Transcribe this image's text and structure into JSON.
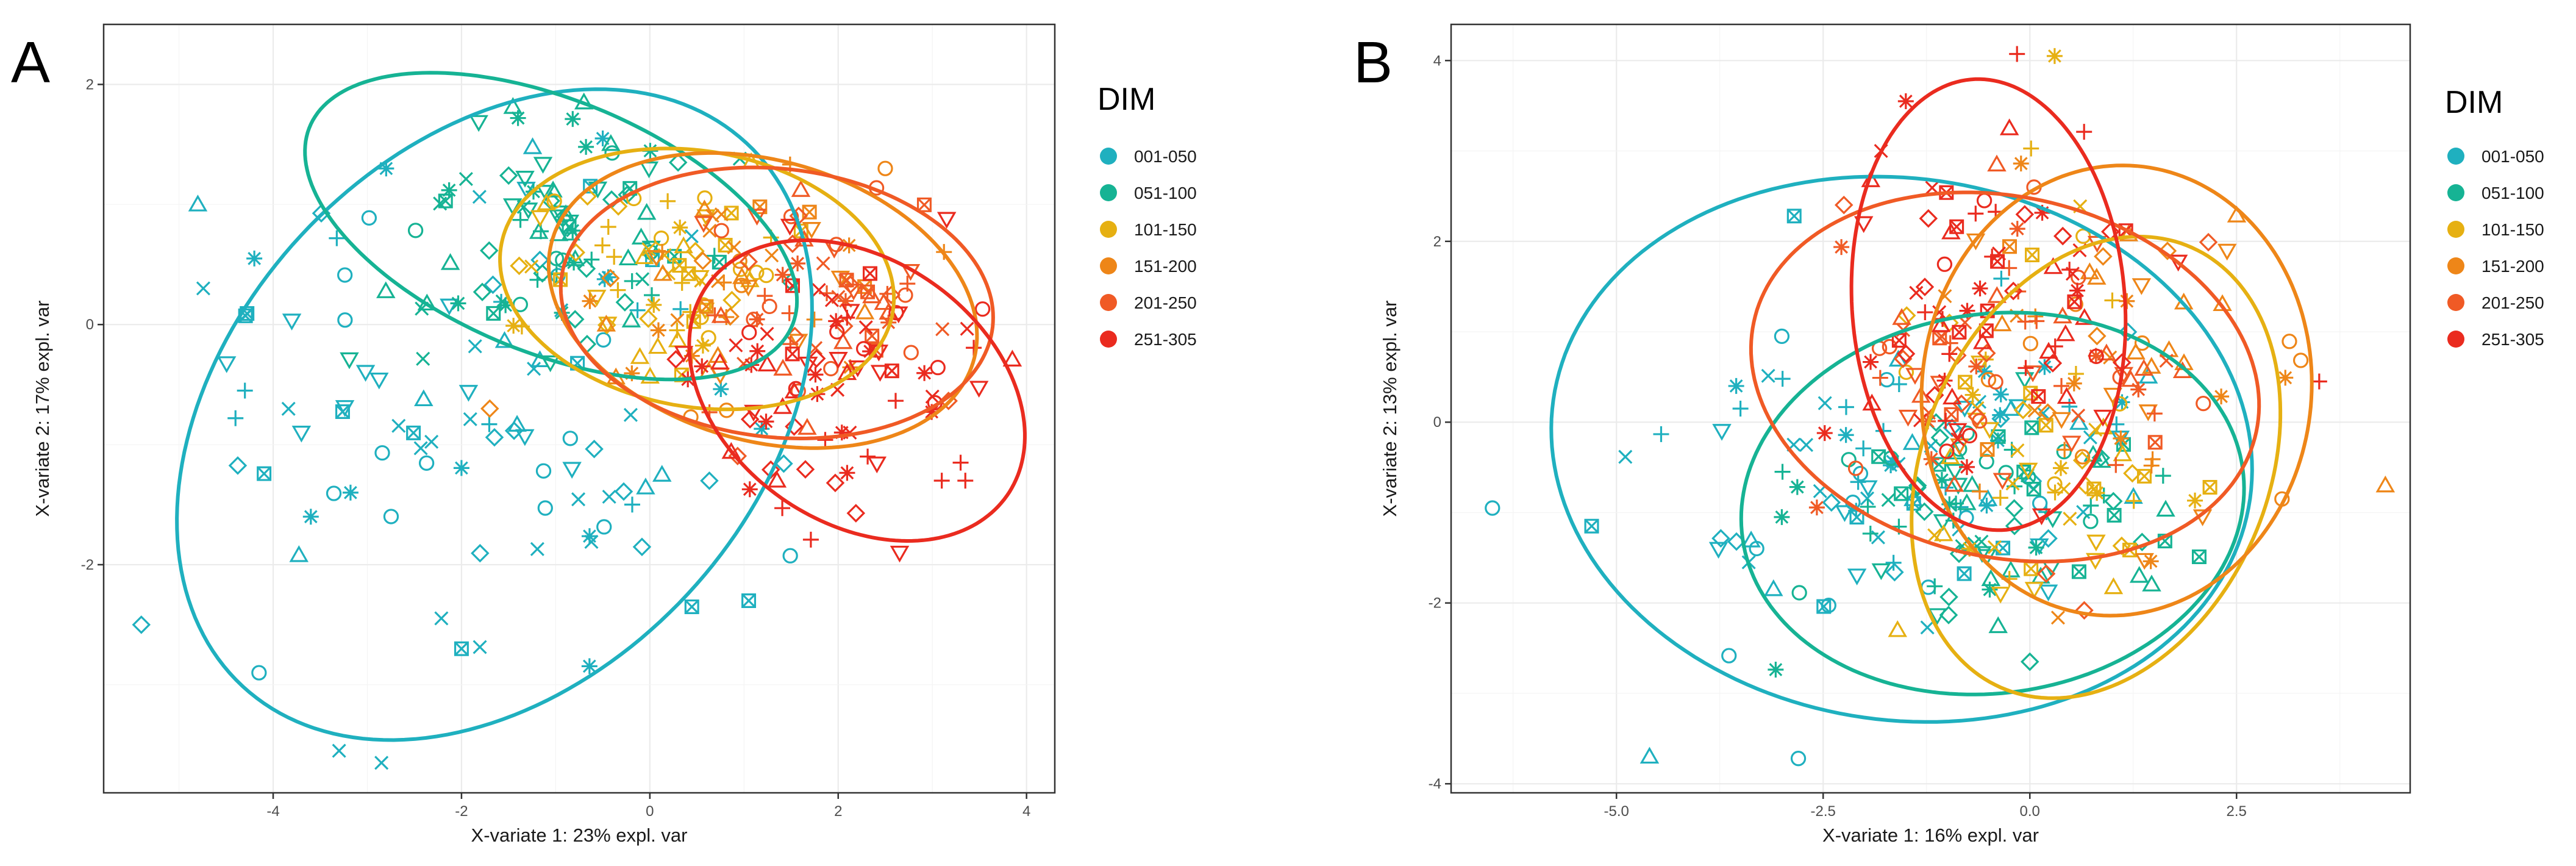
{
  "colors": {
    "001-050": "#1fb0bf",
    "051-100": "#16b394",
    "101-150": "#e6b012",
    "151-200": "#ee8618",
    "201-250": "#f05a25",
    "251-305": "#ea2b1f"
  },
  "chart_data": [
    {
      "panel": "A",
      "type": "scatter",
      "title": "",
      "xlabel": "X-variate 1: 23% expl. var",
      "ylabel": "X-variate 2: 17% expl. var",
      "xlim": [
        -5.8,
        4.3
      ],
      "ylim": [
        -3.9,
        2.5
      ],
      "xticks": [
        -4,
        -2,
        0,
        2,
        4
      ],
      "yticks": [
        -2,
        0,
        2
      ],
      "xtick_labels": [
        "-4",
        "-2",
        "0",
        "2",
        "4"
      ],
      "ytick_labels": [
        "-2",
        "0",
        "2"
      ],
      "legend": {
        "title": "DIM",
        "placement": "right",
        "entries": [
          "001-050",
          "051-100",
          "101-150",
          "151-200",
          "201-250",
          "251-305"
        ]
      },
      "ellipses": [
        {
          "group": "001-050",
          "cx": -1.65,
          "cy": -0.75,
          "rx": 3.6,
          "ry": 2.4,
          "angle_deg": 28
        },
        {
          "group": "051-100",
          "cx": -1.05,
          "cy": 0.82,
          "rx": 2.7,
          "ry": 1.08,
          "angle_deg": -16
        },
        {
          "group": "101-150",
          "cx": 0.5,
          "cy": 0.38,
          "rx": 2.1,
          "ry": 1.07,
          "angle_deg": -6
        },
        {
          "group": "151-200",
          "cx": 1.2,
          "cy": 0.2,
          "rx": 2.3,
          "ry": 1.18,
          "angle_deg": -10
        },
        {
          "group": "201-250",
          "cx": 1.35,
          "cy": 0.18,
          "rx": 2.3,
          "ry": 1.12,
          "angle_deg": -4
        },
        {
          "group": "251-305",
          "cx": 2.2,
          "cy": -0.55,
          "rx": 1.85,
          "ry": 1.15,
          "angle_deg": -20
        }
      ],
      "groups": [
        {
          "name": "001-050",
          "center": [
            -1.7,
            -0.6
          ],
          "sd": [
            1.3,
            0.95
          ],
          "n": 85,
          "seed": 11,
          "extra": [
            [
              -5.4,
              -2.5,
              "diamond"
            ],
            [
              -4.8,
              1.0,
              "triangle"
            ],
            [
              -4.15,
              -2.9,
              "circle"
            ],
            [
              -2.85,
              -3.65,
              "x"
            ],
            [
              -3.3,
              -3.55,
              "x"
            ],
            [
              -2.0,
              -2.7,
              "boxx"
            ],
            [
              1.05,
              -2.3,
              "boxx"
            ],
            [
              -0.5,
              1.55,
              "asterisk"
            ],
            [
              -2.8,
              1.3,
              "asterisk"
            ],
            [
              -4.3,
              -0.55,
              "plus"
            ],
            [
              -4.4,
              -0.78,
              "plus"
            ],
            [
              -3.6,
              -1.6,
              "asterisk"
            ],
            [
              -3.7,
              -0.9,
              "triangle_down"
            ],
            [
              -4.2,
              0.55,
              "asterisk"
            ]
          ]
        },
        {
          "name": "051-100",
          "center": [
            -1.0,
            0.72
          ],
          "sd": [
            0.85,
            0.45
          ],
          "n": 80,
          "seed": 23,
          "extra": [
            [
              -1.4,
              1.72,
              "asterisk"
            ],
            [
              -0.7,
              1.85,
              "triangle"
            ],
            [
              0.3,
              1.35,
              "diamond"
            ]
          ]
        },
        {
          "name": "101-150",
          "center": [
            0.2,
            0.45
          ],
          "sd": [
            0.75,
            0.45
          ],
          "n": 60,
          "seed": 37,
          "extra": []
        },
        {
          "name": "151-200",
          "center": [
            0.9,
            0.2
          ],
          "sd": [
            0.8,
            0.5
          ],
          "n": 45,
          "seed": 41,
          "extra": [
            [
              2.5,
              1.3,
              "circle"
            ],
            [
              -1.7,
              -0.7,
              "diamond"
            ]
          ]
        },
        {
          "name": "201-250",
          "center": [
            1.7,
            0.1
          ],
          "sd": [
            0.7,
            0.45
          ],
          "n": 55,
          "seed": 53,
          "extra": [
            [
              1.5,
              0.9,
              "circle"
            ]
          ]
        },
        {
          "name": "251-305",
          "center": [
            2.0,
            -0.45
          ],
          "sd": [
            0.8,
            0.5
          ],
          "n": 70,
          "seed": 67,
          "extra": [
            [
              3.3,
              -1.15,
              "plus"
            ],
            [
              3.35,
              -1.3,
              "plus"
            ],
            [
              3.1,
              -1.3,
              "plus"
            ],
            [
              1.35,
              -1.3,
              "triangle"
            ],
            [
              3.0,
              -0.6,
              "x"
            ]
          ]
        }
      ]
    },
    {
      "panel": "B",
      "type": "scatter",
      "title": "",
      "xlabel": "X-variate 1: 16% expl. var",
      "ylabel": "X-variate 2: 13% expl. var",
      "xlim": [
        -7.0,
        4.6
      ],
      "ylim": [
        -4.1,
        4.4
      ],
      "xticks": [
        -5.0,
        -2.5,
        0.0,
        2.5
      ],
      "yticks": [
        -4,
        -2,
        0,
        2,
        4
      ],
      "xtick_labels": [
        "-5.0",
        "-2.5",
        "0.0",
        "2.5"
      ],
      "ytick_labels": [
        "-4",
        "-2",
        "0",
        "2",
        "4"
      ],
      "legend": {
        "title": "DIM",
        "placement": "right",
        "entries": [
          "001-050",
          "051-100",
          "101-150",
          "151-200",
          "201-250",
          "251-305"
        ]
      },
      "ellipses": [
        {
          "group": "001-050",
          "cx": -1.55,
          "cy": -0.3,
          "rx": 4.25,
          "ry": 3.0,
          "angle_deg": -6
        },
        {
          "group": "051-100",
          "cx": -0.45,
          "cy": -0.9,
          "rx": 3.05,
          "ry": 2.1,
          "angle_deg": 6
        },
        {
          "group": "101-150",
          "cx": 0.8,
          "cy": -0.5,
          "rx": 2.05,
          "ry": 2.7,
          "angle_deg": -30
        },
        {
          "group": "151-200",
          "cx": 1.05,
          "cy": 0.35,
          "rx": 2.35,
          "ry": 2.5,
          "angle_deg": -15
        },
        {
          "group": "201-250",
          "cx": -0.3,
          "cy": 0.5,
          "rx": 3.1,
          "ry": 2.0,
          "angle_deg": -10
        },
        {
          "group": "251-305",
          "cx": -0.5,
          "cy": 1.3,
          "rx": 1.65,
          "ry": 2.5,
          "angle_deg": 5
        }
      ],
      "groups": [
        {
          "name": "001-050",
          "center": [
            -1.1,
            -0.6
          ],
          "sd": [
            1.3,
            0.85
          ],
          "n": 85,
          "seed": 101,
          "extra": [
            [
              -6.5,
              -0.95,
              "circle"
            ],
            [
              -5.3,
              -1.15,
              "boxx"
            ],
            [
              -4.6,
              -3.7,
              "triangle"
            ],
            [
              -2.8,
              -3.72,
              "circle"
            ],
            [
              -3.5,
              0.15,
              "plus"
            ],
            [
              -3.0,
              0.95,
              "circle"
            ],
            [
              -2.85,
              2.28,
              "boxx"
            ],
            [
              -3.4,
              -1.55,
              "x"
            ]
          ]
        },
        {
          "name": "051-100",
          "center": [
            -0.6,
            -0.9
          ],
          "sd": [
            1.1,
            0.7
          ],
          "n": 80,
          "seed": 113,
          "extra": [
            [
              -3.0,
              -1.05,
              "asterisk"
            ],
            [
              0.0,
              -2.65,
              "diamond"
            ]
          ]
        },
        {
          "name": "101-150",
          "center": [
            0.4,
            -0.4
          ],
          "sd": [
            0.95,
            0.95
          ],
          "n": 55,
          "seed": 127,
          "extra": [
            [
              0.3,
              4.05,
              "asterisk"
            ],
            [
              -1.6,
              -2.3,
              "triangle"
            ]
          ]
        },
        {
          "name": "151-200",
          "center": [
            0.7,
            0.3
          ],
          "sd": [
            1.0,
            1.0
          ],
          "n": 50,
          "seed": 131,
          "extra": [
            [
              4.3,
              -0.7,
              "triangle"
            ],
            [
              3.05,
              -0.85,
              "circle"
            ]
          ]
        },
        {
          "name": "201-250",
          "center": [
            -0.2,
            0.6
          ],
          "sd": [
            1.1,
            0.85
          ],
          "n": 60,
          "seed": 149,
          "extra": [
            [
              -0.4,
              2.85,
              "triangle"
            ],
            [
              0.05,
              2.6,
              "circle"
            ]
          ]
        },
        {
          "name": "251-305",
          "center": [
            -0.5,
            1.3
          ],
          "sd": [
            0.8,
            1.0
          ],
          "n": 70,
          "seed": 157,
          "extra": [
            [
              -1.5,
              3.55,
              "asterisk"
            ],
            [
              3.5,
              0.45,
              "plus"
            ],
            [
              -1.8,
              3.0,
              "x"
            ]
          ]
        }
      ]
    }
  ]
}
